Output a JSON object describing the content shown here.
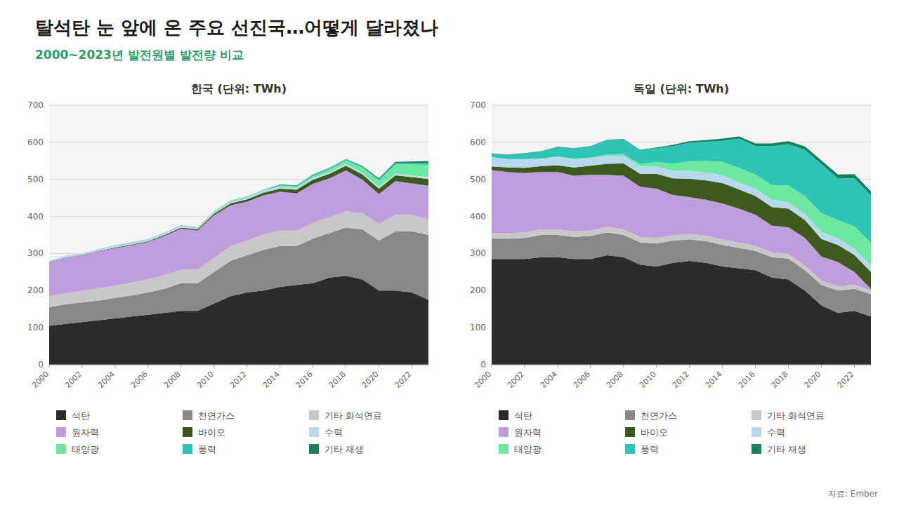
{
  "title": "탈석탄 눈 앞에 온 주요 선진국…어떻게 달라졌나",
  "subtitle": "2000~2023년 발전원별 발전량 비교",
  "annotations": [
    "자료: Ember"
  ],
  "chart_data": [
    {
      "type": "area",
      "stacked": true,
      "title": "한국 (단위: TWh)",
      "x": [
        2000,
        2001,
        2002,
        2003,
        2004,
        2005,
        2006,
        2007,
        2008,
        2009,
        2010,
        2011,
        2012,
        2013,
        2014,
        2015,
        2016,
        2017,
        2018,
        2019,
        2020,
        2021,
        2022,
        2023
      ],
      "xlim": [
        2000,
        2023
      ],
      "xticks": [
        2000,
        2002,
        2004,
        2006,
        2008,
        2010,
        2012,
        2014,
        2016,
        2018,
        2020,
        2022
      ],
      "ylim": [
        0,
        700
      ],
      "yticks": [
        0,
        100,
        200,
        300,
        400,
        500,
        600,
        700
      ],
      "grid": true,
      "legend": "bottom",
      "series": [
        {
          "name": "석탄",
          "color": "#2b2b2b",
          "values": [
            105,
            110,
            115,
            120,
            125,
            130,
            135,
            140,
            145,
            145,
            165,
            185,
            195,
            200,
            210,
            215,
            220,
            235,
            240,
            230,
            200,
            200,
            195,
            175
          ]
        },
        {
          "name": "천연가스",
          "color": "#888888",
          "values": [
            50,
            53,
            53,
            53,
            55,
            57,
            60,
            65,
            75,
            75,
            85,
            95,
            100,
            110,
            110,
            105,
            120,
            120,
            130,
            135,
            135,
            160,
            165,
            175
          ]
        },
        {
          "name": "기타 화석연료",
          "color": "#c8c8c8",
          "values": [
            30,
            30,
            32,
            33,
            34,
            35,
            36,
            37,
            37,
            37,
            38,
            40,
            40,
            42,
            42,
            42,
            43,
            43,
            44,
            44,
            45,
            45,
            44,
            43
          ]
        },
        {
          "name": "원자력",
          "color": "#c09ddd",
          "values": [
            90,
            95,
            95,
            100,
            100,
            100,
            100,
            105,
            110,
            105,
            115,
            110,
            105,
            105,
            105,
            100,
            105,
            105,
            110,
            90,
            80,
            90,
            85,
            90
          ]
        },
        {
          "name": "바이오",
          "color": "#3d5a1e",
          "values": [
            1,
            1,
            1,
            1,
            2,
            2,
            2,
            3,
            3,
            3,
            4,
            5,
            6,
            7,
            8,
            10,
            11,
            12,
            13,
            14,
            15,
            16,
            17,
            18
          ]
        },
        {
          "name": "수력",
          "color": "#b8d8ee",
          "values": [
            5,
            5,
            5,
            5,
            5,
            5,
            5,
            5,
            5,
            5,
            5,
            5,
            5,
            5,
            5,
            5,
            5,
            5,
            5,
            5,
            5,
            5,
            5,
            5
          ]
        },
        {
          "name": "태양광",
          "color": "#6de8a0",
          "values": [
            0,
            0,
            0,
            0,
            0,
            0,
            0,
            0,
            0,
            0,
            1,
            1,
            2,
            2,
            3,
            4,
            5,
            7,
            9,
            13,
            17,
            24,
            29,
            33
          ]
        },
        {
          "name": "풍력",
          "color": "#2ec4b6",
          "values": [
            0,
            0,
            0,
            0,
            1,
            1,
            1,
            1,
            1,
            1,
            1,
            1,
            1,
            1,
            2,
            2,
            3,
            3,
            3,
            3,
            3,
            4,
            4,
            5
          ]
        },
        {
          "name": "기타 재생",
          "color": "#1a8060",
          "values": [
            0,
            0,
            0,
            0,
            0,
            0,
            0,
            0,
            0,
            0,
            0,
            0,
            0,
            0,
            1,
            1,
            1,
            1,
            1,
            2,
            3,
            3,
            4,
            5
          ]
        }
      ]
    },
    {
      "type": "area",
      "stacked": true,
      "title": "독일 (단위: TWh)",
      "x": [
        2000,
        2001,
        2002,
        2003,
        2004,
        2005,
        2006,
        2007,
        2008,
        2009,
        2010,
        2011,
        2012,
        2013,
        2014,
        2015,
        2016,
        2017,
        2018,
        2019,
        2020,
        2021,
        2022,
        2023
      ],
      "xlim": [
        2000,
        2023
      ],
      "xticks": [
        2000,
        2002,
        2004,
        2006,
        2008,
        2010,
        2012,
        2014,
        2016,
        2018,
        2020,
        2022
      ],
      "ylim": [
        0,
        700
      ],
      "yticks": [
        0,
        100,
        200,
        300,
        400,
        500,
        600,
        700
      ],
      "grid": true,
      "legend": "bottom",
      "series": [
        {
          "name": "석탄",
          "color": "#2b2b2b",
          "values": [
            285,
            285,
            285,
            290,
            290,
            285,
            285,
            295,
            290,
            270,
            265,
            275,
            280,
            275,
            265,
            260,
            255,
            235,
            230,
            200,
            160,
            140,
            145,
            130
          ]
        },
        {
          "name": "천연가스",
          "color": "#888888",
          "values": [
            55,
            55,
            57,
            60,
            60,
            60,
            62,
            62,
            60,
            60,
            62,
            60,
            58,
            58,
            58,
            55,
            52,
            55,
            56,
            55,
            55,
            60,
            60,
            60
          ]
        },
        {
          "name": "기타 화석연료",
          "color": "#c8c8c8",
          "values": [
            15,
            15,
            15,
            15,
            15,
            15,
            15,
            15,
            15,
            15,
            15,
            15,
            15,
            15,
            15,
            14,
            14,
            13,
            13,
            12,
            12,
            12,
            11,
            10
          ]
        },
        {
          "name": "원자력",
          "color": "#c09ddd",
          "values": [
            170,
            165,
            160,
            155,
            155,
            150,
            150,
            140,
            145,
            135,
            133,
            108,
            99,
            97,
            97,
            92,
            84,
            72,
            72,
            75,
            65,
            65,
            34,
            5
          ]
        },
        {
          "name": "바이오",
          "color": "#3d5a1e",
          "values": [
            10,
            12,
            14,
            16,
            18,
            22,
            25,
            30,
            33,
            35,
            40,
            45,
            50,
            52,
            55,
            52,
            50,
            50,
            50,
            48,
            47,
            46,
            46,
            45
          ]
        },
        {
          "name": "수력",
          "color": "#b8d8ee",
          "values": [
            25,
            23,
            24,
            20,
            23,
            22,
            20,
            22,
            21,
            20,
            20,
            20,
            21,
            22,
            21,
            19,
            20,
            20,
            17,
            17,
            19,
            18,
            17,
            17
          ]
        },
        {
          "name": "태양광",
          "color": "#6de8a0",
          "values": [
            0,
            0,
            0,
            0,
            1,
            2,
            2,
            3,
            4,
            6,
            12,
            19,
            26,
            31,
            36,
            39,
            38,
            40,
            46,
            47,
            51,
            49,
            60,
            62
          ]
        },
        {
          "name": "풍력",
          "color": "#2ec4b6",
          "values": [
            9,
            11,
            15,
            19,
            25,
            27,
            30,
            39,
            40,
            38,
            37,
            48,
            50,
            51,
            57,
            79,
            77,
            105,
            111,
            126,
            132,
            113,
            130,
            128
          ]
        },
        {
          "name": "기타 재생",
          "color": "#1a8060",
          "values": [
            1,
            1,
            1,
            1,
            1,
            1,
            1,
            1,
            1,
            1,
            2,
            3,
            4,
            5,
            6,
            6,
            7,
            7,
            8,
            9,
            10,
            10,
            11,
            11
          ]
        }
      ]
    }
  ]
}
